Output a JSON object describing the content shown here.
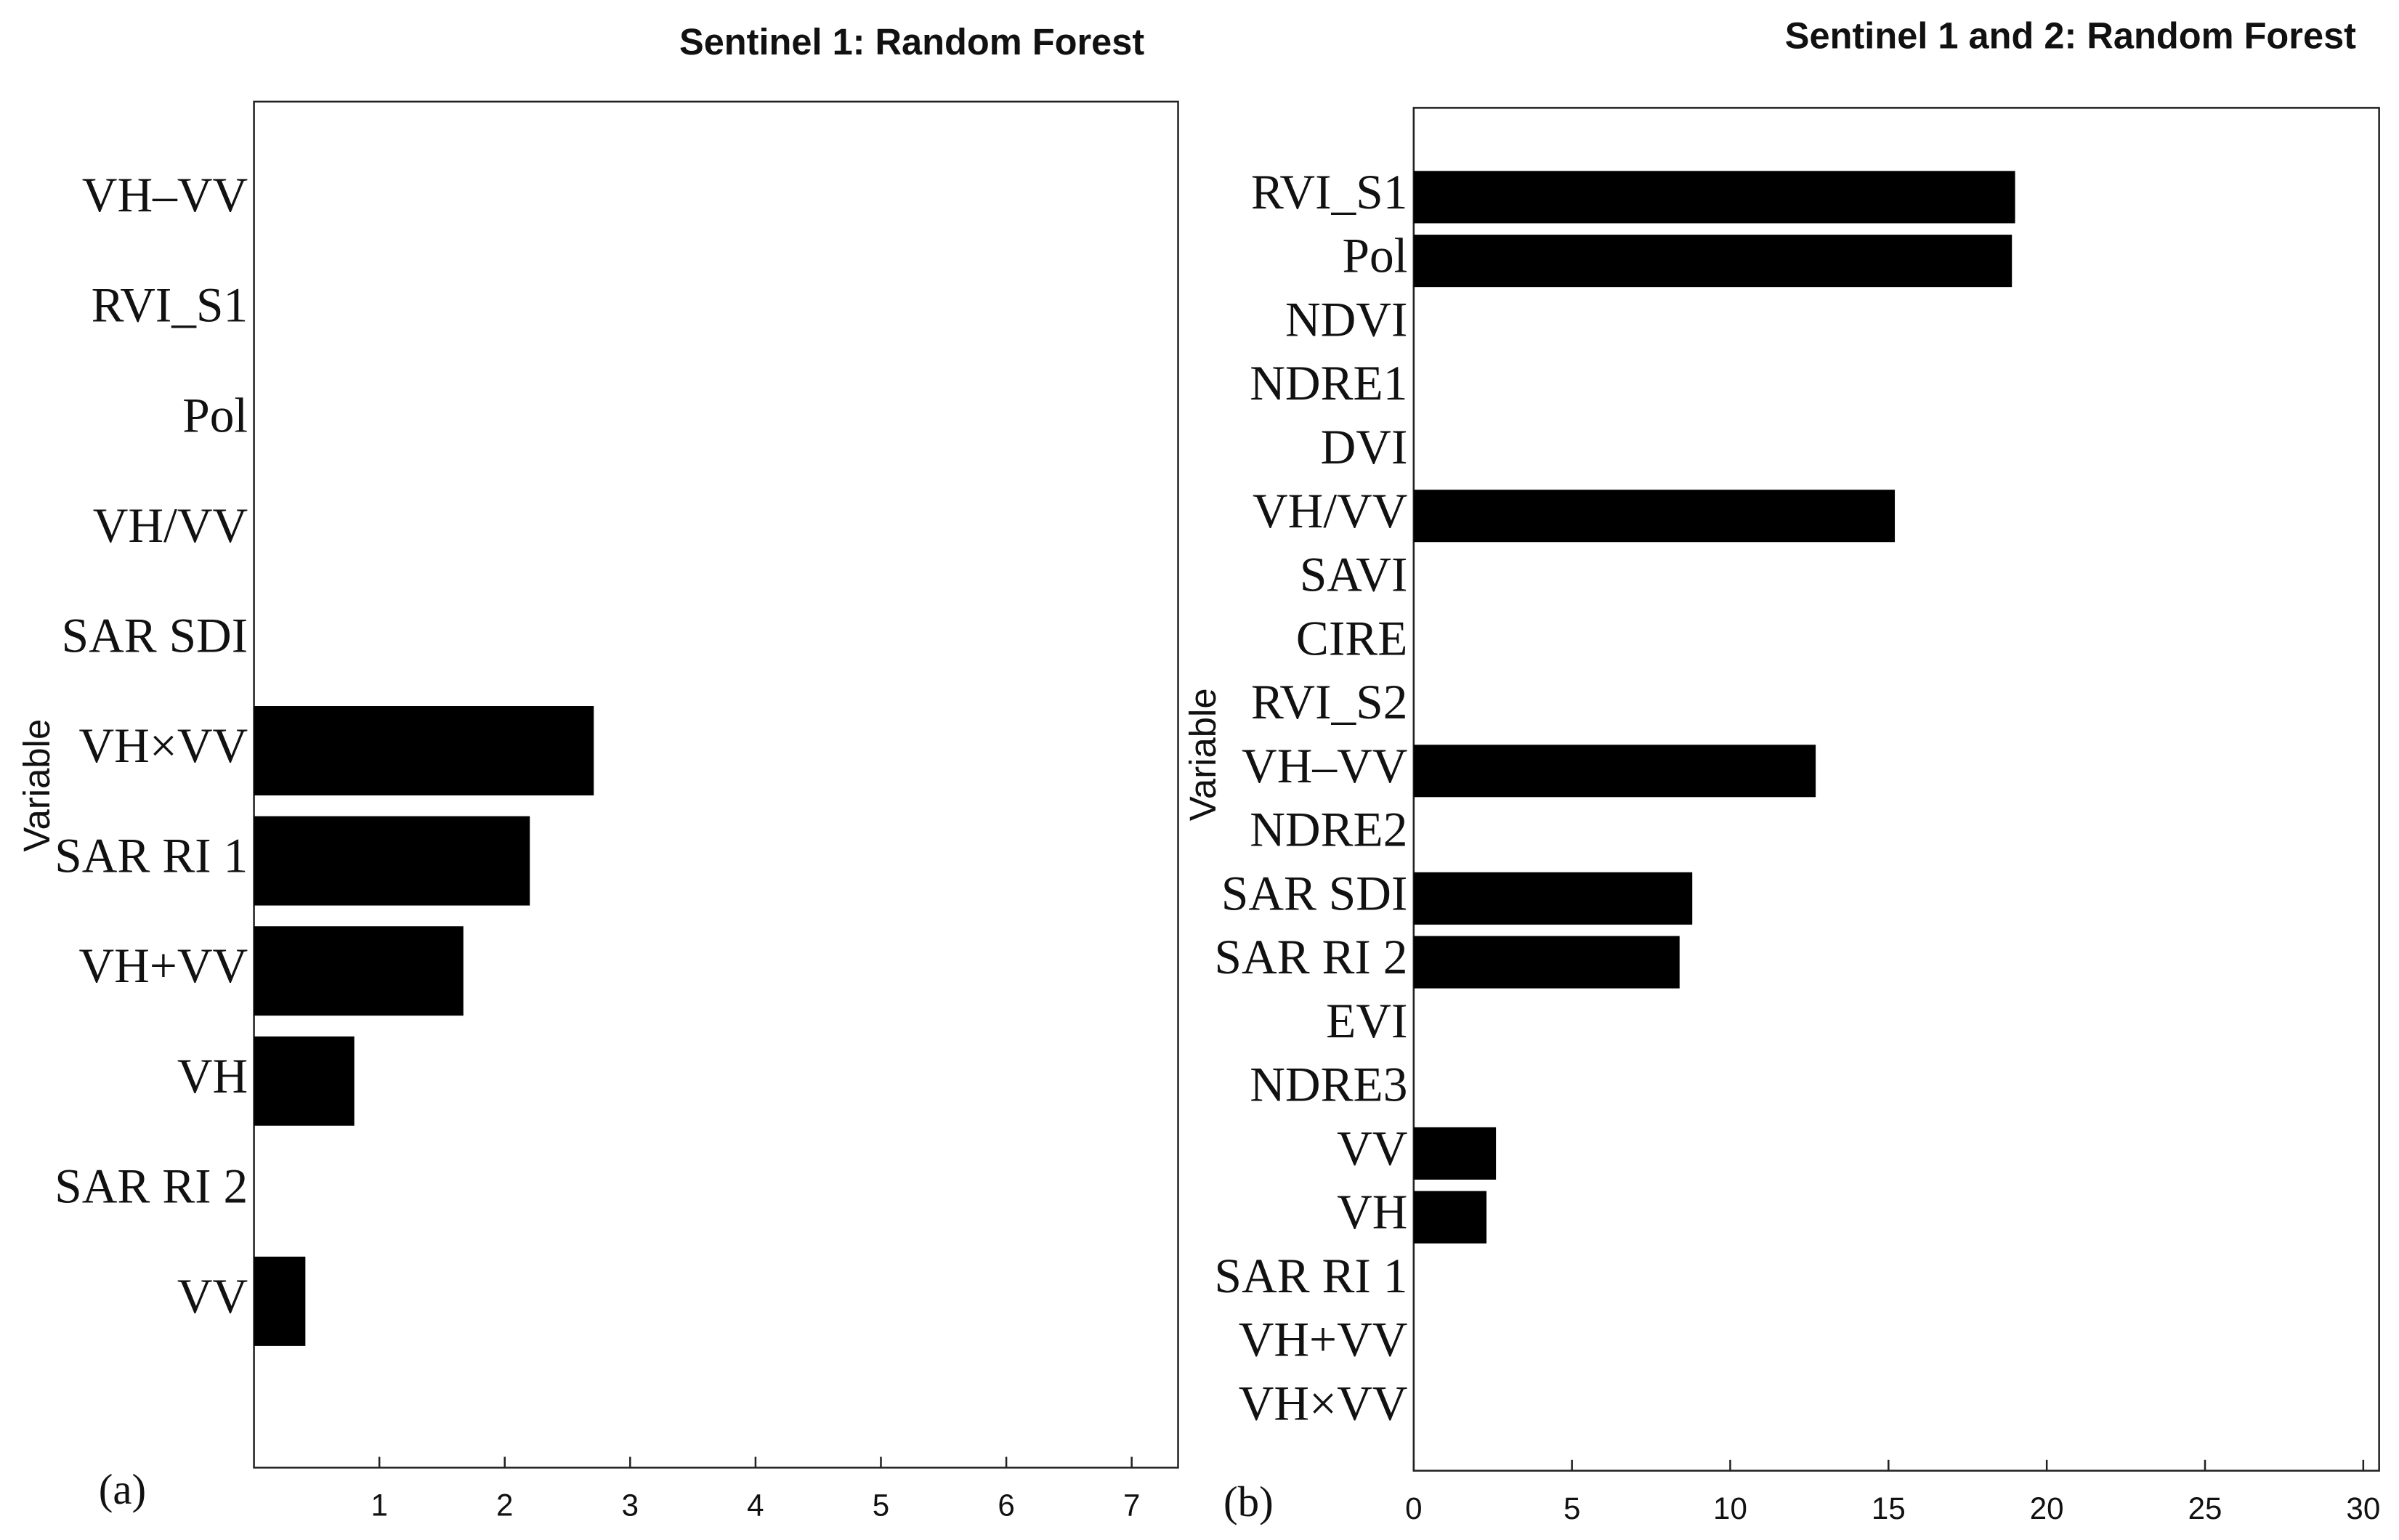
{
  "chart_data": [
    {
      "type": "bar",
      "orientation": "horizontal",
      "title": "Sentinel 1: Random Forest",
      "ylabel": "Variable",
      "panel_label": "(a)",
      "categories": [
        "VH–VV",
        "RVI_S1",
        "Pol",
        "VH/VV",
        "SAR SDI",
        "VH×VV",
        "SAR RI 1",
        "VH+VV",
        "VH",
        "SAR RI 2",
        "VV"
      ],
      "values": [
        0,
        0,
        0,
        0,
        0,
        2.71,
        2.2,
        1.67,
        0.8,
        0,
        0.41
      ],
      "color": "#000000",
      "xlim": [
        0,
        7.37
      ],
      "xticks": [
        1,
        2,
        3,
        4,
        5,
        6,
        7
      ]
    },
    {
      "type": "bar",
      "orientation": "horizontal",
      "title": "Sentinel 1 and 2: Random Forest",
      "ylabel": "Variable",
      "panel_label": "(b)",
      "categories": [
        "RVI_S1",
        "Pol",
        "NDVI",
        "NDRE1",
        "DVI",
        "VH/VV",
        "SAVI",
        "CIRE",
        "RVI_S2",
        "VH–VV",
        "NDRE2",
        "SAR SDI",
        "SAR RI 2",
        "EVI",
        "NDRE3",
        "VV",
        "VH",
        "SAR RI 1",
        "VH+VV",
        "VH×VV"
      ],
      "values": [
        19.0,
        18.9,
        0,
        0,
        0,
        15.2,
        0,
        0,
        0,
        12.7,
        0,
        8.8,
        8.4,
        0,
        0,
        2.6,
        2.3,
        0,
        0,
        0
      ],
      "color": "#000000",
      "xlim": [
        0,
        30.5
      ],
      "xticks": [
        0,
        5,
        10,
        15,
        20,
        25,
        30
      ]
    }
  ]
}
